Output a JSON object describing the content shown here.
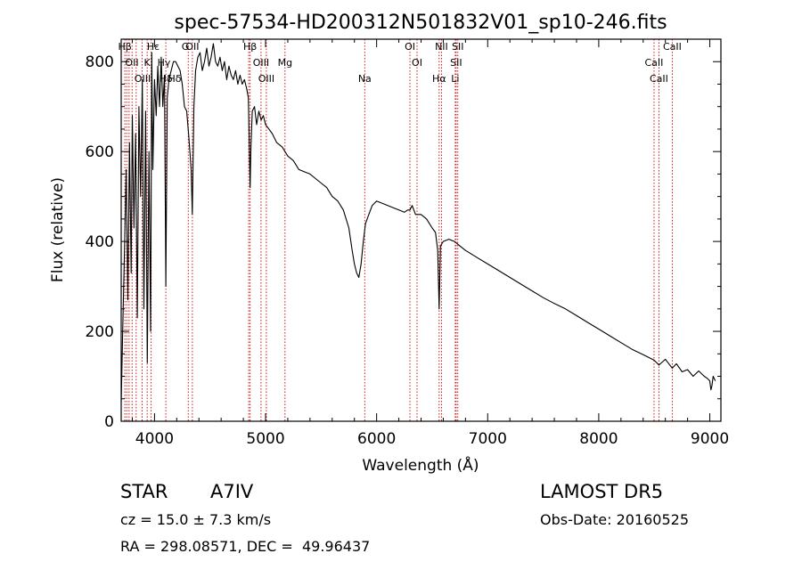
{
  "chart_data": {
    "type": "line",
    "title": "spec-57534-HD200312N501832V01_sp10-246.fits",
    "xlabel": "Wavelength (Å)",
    "ylabel": "Flux (relative)",
    "xlim": [
      3700,
      9100
    ],
    "ylim": [
      0,
      850
    ],
    "xticks": [
      4000,
      5000,
      6000,
      7000,
      8000,
      9000
    ],
    "yticks": [
      0,
      200,
      400,
      600,
      800
    ],
    "grid": false,
    "series": [
      {
        "x": [
          3700,
          3715,
          3730,
          3745,
          3760,
          3775,
          3790,
          3800,
          3815,
          3830,
          3845,
          3860,
          3875,
          3890,
          3905,
          3920,
          3935,
          3950,
          3965,
          3975,
          3985,
          4000,
          4015,
          4030,
          4045,
          4060,
          4075,
          4090,
          4102,
          4115,
          4130,
          4150,
          4170,
          4190,
          4210,
          4230,
          4250,
          4270,
          4290,
          4310,
          4330,
          4340,
          4355,
          4370,
          4390,
          4410,
          4430,
          4450,
          4470,
          4490,
          4510,
          4530,
          4550,
          4570,
          4590,
          4610,
          4630,
          4650,
          4670,
          4690,
          4710,
          4730,
          4750,
          4770,
          4790,
          4810,
          4830,
          4845,
          4855,
          4861,
          4868,
          4880,
          4900,
          4920,
          4940,
          4960,
          4980,
          5000,
          5030,
          5060,
          5100,
          5150,
          5200,
          5250,
          5300,
          5350,
          5400,
          5450,
          5500,
          5550,
          5600,
          5650,
          5700,
          5750,
          5780,
          5800,
          5820,
          5840,
          5860,
          5880,
          5900,
          5930,
          5960,
          6000,
          6050,
          6100,
          6150,
          6200,
          6250,
          6280,
          6300,
          6320,
          6350,
          6400,
          6450,
          6500,
          6530,
          6550,
          6563,
          6575,
          6600,
          6650,
          6700,
          6750,
          6800,
          6900,
          7000,
          7100,
          7200,
          7300,
          7400,
          7500,
          7600,
          7700,
          7800,
          7900,
          8000,
          8100,
          8200,
          8300,
          8400,
          8498,
          8542,
          8600,
          8662,
          8700,
          8750,
          8800,
          8850,
          8900,
          8950,
          8980,
          9000,
          9010,
          9020,
          9030,
          9040,
          9050
        ],
        "y": [
          40,
          220,
          380,
          560,
          270,
          620,
          330,
          680,
          430,
          640,
          230,
          700,
          500,
          760,
          250,
          690,
          130,
          600,
          200,
          820,
          560,
          760,
          680,
          790,
          700,
          810,
          700,
          770,
          300,
          720,
          760,
          780,
          800,
          800,
          790,
          780,
          750,
          700,
          690,
          630,
          560,
          460,
          700,
          780,
          810,
          820,
          780,
          800,
          830,
          790,
          810,
          840,
          800,
          790,
          810,
          780,
          800,
          760,
          790,
          770,
          760,
          780,
          750,
          770,
          750,
          760,
          740,
          720,
          600,
          520,
          610,
          690,
          700,
          660,
          690,
          670,
          680,
          660,
          650,
          640,
          620,
          610,
          590,
          580,
          560,
          555,
          550,
          540,
          530,
          520,
          500,
          490,
          470,
          430,
          380,
          350,
          330,
          320,
          350,
          400,
          440,
          460,
          480,
          490,
          485,
          480,
          475,
          470,
          465,
          470,
          470,
          480,
          460,
          460,
          450,
          430,
          420,
          380,
          250,
          390,
          400,
          405,
          400,
          390,
          380,
          365,
          350,
          335,
          320,
          305,
          290,
          275,
          262,
          250,
          235,
          220,
          205,
          190,
          175,
          160,
          148,
          136,
          125,
          138,
          118,
          128,
          110,
          115,
          100,
          112,
          100,
          95,
          90,
          70,
          80,
          100,
          95,
          90
        ]
      }
    ],
    "lines": [
      {
        "label": "Hβ",
        "x": 3733
      },
      {
        "label": "K",
        "x": 3934
      },
      {
        "label": "Hδ",
        "x": 4102
      },
      {
        "label": "OII",
        "x": 4341
      },
      {
        "label": "OIII",
        "x": 4959
      },
      {
        "label": "OIII",
        "x": 5007
      },
      {
        "label": "Hβ",
        "x": 4861
      },
      {
        "label": "Mg",
        "x": 5175
      },
      {
        "label": "Na",
        "x": 5893
      },
      {
        "label": "OI",
        "x": 6300
      },
      {
        "label": "OI",
        "x": 6364
      },
      {
        "label": "Hα",
        "x": 6563
      },
      {
        "label": "NII",
        "x": 6584
      },
      {
        "label": "SII",
        "x": 6716
      },
      {
        "label": "Li",
        "x": 6708
      },
      {
        "label": "SII",
        "x": 6731
      },
      {
        "label": "CaII",
        "x": 8498
      },
      {
        "label": "CaII",
        "x": 8542
      },
      {
        "label": "CaII",
        "x": 8662
      }
    ],
    "extra_line_x": [
      3750,
      3771,
      3798,
      3835,
      3889,
      3970,
      4304,
      4848
    ],
    "crowded_labels": [
      "OII",
      "OIII",
      "Hε",
      "Hγ",
      "Hδ",
      "G"
    ]
  },
  "info": {
    "object_type": "STAR",
    "subclass": "A7IV",
    "survey": "LAMOST DR5",
    "cz": "cz = 15.0 ± 7.3 km/s",
    "obs_date": "Obs-Date: 20160525",
    "coords": "RA = 298.08571, DEC =  49.96437"
  },
  "colors": {
    "spectrum": "#000000",
    "line_marker": "#cc0000",
    "axes": "#000000"
  }
}
